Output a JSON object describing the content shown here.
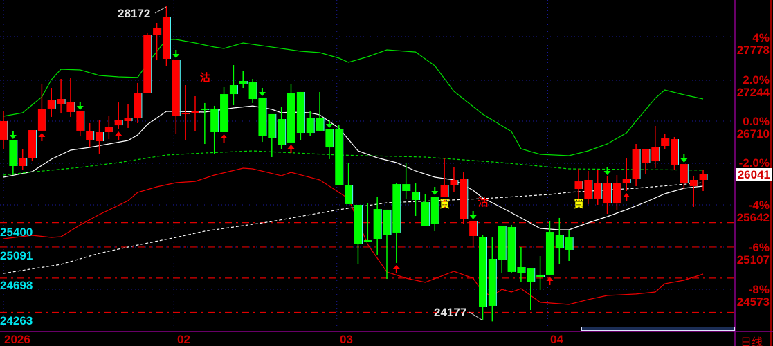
{
  "colors": {
    "up": "#ff0000",
    "down": "#00ff00",
    "ma_short": "#ffffff",
    "ma_long": "#ffffff",
    "band_upper": "#00dd00",
    "band_mid": "#00dd00",
    "band_lower": "#ee0000",
    "grid": "#1a1aa0",
    "axis": "#8a008a",
    "left_labels": "#00e5ee"
  },
  "right_axis": [
    {
      "pct": "4%",
      "price": "27778"
    },
    {
      "pct": "2.0%",
      "price": "27244"
    },
    {
      "pct": "0.0%",
      "price": "26710"
    },
    {
      "pct": "-2.0%",
      "price": ""
    },
    {
      "pct": "-4%",
      "price": "25642"
    },
    {
      "pct": "-6%",
      "price": "25107"
    },
    {
      "pct": "-8%",
      "price": "24573"
    }
  ],
  "last_price": "26041",
  "left_levels": [
    {
      "label": "25400",
      "value": 25400
    },
    {
      "label": "25091",
      "value": 25091
    },
    {
      "label": "24698",
      "value": 24698
    },
    {
      "label": "24263",
      "value": 24263
    }
  ],
  "x_axis": [
    {
      "label": "2026",
      "index": 0
    },
    {
      "label": "02",
      "index": 18
    },
    {
      "label": "03",
      "index": 35
    },
    {
      "label": "04",
      "index": 57
    }
  ],
  "period_label": "日线",
  "annotations": {
    "high": "28172",
    "low": "24177"
  },
  "chart_data": {
    "type": "candlestick",
    "ylim": [
      24177,
      28172
    ],
    "candles": [
      [
        26474,
        26833,
        26360,
        26710
      ],
      [
        26465,
        26465,
        26027,
        26141
      ],
      [
        26141,
        26360,
        26089,
        26246
      ],
      [
        26246,
        26596,
        26202,
        26596
      ],
      [
        26588,
        27174,
        26588,
        26859
      ],
      [
        26868,
        27130,
        26763,
        26973
      ],
      [
        26929,
        27244,
        26806,
        26990
      ],
      [
        26824,
        27253,
        26763,
        26955
      ],
      [
        26588,
        26833,
        26517,
        26833
      ],
      [
        26465,
        26684,
        26386,
        26579
      ],
      [
        26456,
        26719,
        26299,
        26570
      ],
      [
        26570,
        26780,
        26482,
        26640
      ],
      [
        26657,
        26946,
        26605,
        26719
      ],
      [
        26710,
        26929,
        26623,
        26745
      ],
      [
        26745,
        27192,
        26684,
        27060
      ],
      [
        27069,
        27822,
        27069,
        27796
      ],
      [
        27804,
        27953,
        27480,
        27892
      ],
      [
        27498,
        28172,
        27410,
        28032
      ],
      [
        26780,
        27489,
        26552,
        27489
      ],
      [
        26798,
        27165,
        26465,
        26815
      ],
      [
        26815,
        27025,
        26579,
        26841
      ],
      [
        26868,
        26938,
        26421,
        26860
      ],
      [
        26868,
        26903,
        26290,
        26570
      ],
      [
        27051,
        27139,
        26570,
        26570
      ],
      [
        27165,
        27419,
        26911,
        27051
      ],
      [
        27218,
        27349,
        27130,
        27183
      ],
      [
        27209,
        27244,
        26938,
        26990
      ],
      [
        27008,
        27008,
        26447,
        26526
      ],
      [
        26798,
        26798,
        26255,
        26500
      ],
      [
        26736,
        26885,
        26351,
        26412
      ],
      [
        27069,
        27174,
        26439,
        26439
      ],
      [
        27078,
        27078,
        26465,
        26561
      ],
      [
        26754,
        26841,
        26526,
        26561
      ],
      [
        26754,
        27078,
        26588,
        26588
      ],
      [
        26605,
        26605,
        26229,
        26377
      ],
      [
        26614,
        26666,
        25896,
        25896
      ],
      [
        25896,
        26176,
        25660,
        25660
      ],
      [
        25651,
        25651,
        24898,
        25152
      ],
      [
        25204,
        25677,
        25178,
        25197
      ],
      [
        25598,
        25747,
        25021,
        25213
      ],
      [
        25590,
        25590,
        24714,
        25274
      ],
      [
        25913,
        25931,
        24916,
        25301
      ],
      [
        25913,
        26185,
        25721,
        25826
      ],
      [
        25817,
        25922,
        25511,
        25712
      ],
      [
        25686,
        25782,
        25380,
        25380
      ],
      [
        25756,
        25756,
        25318,
        25406
      ],
      [
        25747,
        26246,
        25747,
        25896
      ],
      [
        25896,
        26124,
        25817,
        25966
      ],
      [
        25467,
        26062,
        25414,
        25975
      ],
      [
        25257,
        25449,
        25117,
        25449
      ],
      [
        25248,
        25274,
        24198,
        24364
      ],
      [
        24968,
        25239,
        24177,
        24373
      ],
      [
        25380,
        25380,
        24784,
        24959
      ],
      [
        25371,
        25397,
        24784,
        24802
      ],
      [
        24863,
        25117,
        24679,
        24784
      ],
      [
        24845,
        24845,
        24320,
        24679
      ],
      [
        24767,
        25003,
        24574,
        24740
      ],
      [
        25309,
        25441,
        24767,
        24767
      ],
      [
        25274,
        25485,
        24907,
        25099
      ],
      [
        25239,
        25327,
        24942,
        25082
      ],
      [
        25852,
        26106,
        25695,
        25948
      ],
      [
        25721,
        26080,
        25660,
        25966
      ],
      [
        25730,
        26097,
        25651,
        25922
      ],
      [
        25668,
        26010,
        25537,
        25922
      ],
      [
        25668,
        26027,
        25590,
        25922
      ],
      [
        25922,
        26237,
        25826,
        25983
      ],
      [
        25975,
        26421,
        25887,
        26351
      ],
      [
        26185,
        26360,
        26045,
        26360
      ],
      [
        26202,
        26649,
        26115,
        26386
      ],
      [
        26395,
        26544,
        26351,
        26491
      ],
      [
        26159,
        26509,
        26089,
        26482
      ],
      [
        25922,
        26167,
        25852,
        26167
      ],
      [
        25887,
        26019,
        25625,
        25966
      ],
      [
        25966,
        26097,
        25826,
        26041
      ]
    ],
    "lines": {
      "band_upper": [
        [
          0,
          26771
        ],
        [
          2,
          26815
        ],
        [
          4,
          27016
        ],
        [
          5,
          27235
        ],
        [
          6,
          27367
        ],
        [
          8,
          27358
        ],
        [
          10,
          27288
        ],
        [
          12,
          27270
        ],
        [
          14,
          27262
        ],
        [
          15,
          27437
        ],
        [
          17,
          27743
        ],
        [
          18,
          27743
        ],
        [
          20,
          27699
        ],
        [
          22,
          27647
        ],
        [
          23,
          27629
        ],
        [
          25,
          27699
        ],
        [
          27,
          27664
        ],
        [
          29,
          27629
        ],
        [
          31,
          27594
        ],
        [
          33,
          27577
        ],
        [
          35,
          27507
        ],
        [
          36,
          27454
        ],
        [
          38,
          27524
        ],
        [
          40,
          27612
        ],
        [
          43,
          27585
        ],
        [
          45,
          27410
        ],
        [
          47,
          27087
        ],
        [
          50,
          26798
        ],
        [
          53,
          26579
        ],
        [
          54,
          26360
        ],
        [
          56,
          26290
        ],
        [
          59,
          26272
        ],
        [
          61,
          26334
        ],
        [
          63,
          26421
        ],
        [
          65,
          26561
        ],
        [
          66,
          26710
        ],
        [
          68,
          26999
        ],
        [
          69,
          27104
        ],
        [
          71,
          27043
        ],
        [
          73,
          26990
        ]
      ],
      "ma_short": [
        [
          0,
          26001
        ],
        [
          3,
          26071
        ],
        [
          5,
          26229
        ],
        [
          7,
          26342
        ],
        [
          9,
          26377
        ],
        [
          11,
          26421
        ],
        [
          13,
          26465
        ],
        [
          14,
          26535
        ],
        [
          15,
          26666
        ],
        [
          17,
          26833
        ],
        [
          18,
          26833
        ],
        [
          21,
          26824
        ],
        [
          22,
          26841
        ],
        [
          24,
          26876
        ],
        [
          26,
          26902
        ],
        [
          28,
          26859
        ],
        [
          29,
          26815
        ],
        [
          30,
          26824
        ],
        [
          32,
          26815
        ],
        [
          33,
          26789
        ],
        [
          35,
          26622
        ],
        [
          37,
          26334
        ],
        [
          39,
          26246
        ],
        [
          41,
          26185
        ],
        [
          43,
          26080
        ],
        [
          45,
          26001
        ],
        [
          47,
          25966
        ],
        [
          49,
          25835
        ],
        [
          50,
          25738
        ],
        [
          52,
          25616
        ],
        [
          54,
          25485
        ],
        [
          56,
          25353
        ],
        [
          58,
          25336
        ],
        [
          59,
          25336
        ],
        [
          61,
          25423
        ],
        [
          63,
          25502
        ],
        [
          65,
          25590
        ],
        [
          67,
          25686
        ],
        [
          69,
          25791
        ],
        [
          71,
          25861
        ],
        [
          73,
          25887
        ]
      ],
      "ma_long": [
        [
          0,
          24784
        ],
        [
          6,
          24898
        ],
        [
          10,
          25038
        ],
        [
          14,
          25143
        ],
        [
          18,
          25239
        ],
        [
          21,
          25318
        ],
        [
          28,
          25441
        ],
        [
          35,
          25590
        ],
        [
          40,
          25677
        ],
        [
          50,
          25730
        ],
        [
          57,
          25782
        ],
        [
          59,
          25809
        ],
        [
          66,
          25861
        ],
        [
          73,
          25931
        ]
      ],
      "band_mid": [
        [
          0,
          26027
        ],
        [
          2,
          26054
        ],
        [
          8,
          26124
        ],
        [
          12,
          26185
        ],
        [
          17,
          26281
        ],
        [
          21,
          26307
        ],
        [
          26,
          26334
        ],
        [
          35,
          26281
        ],
        [
          44,
          26255
        ],
        [
          52,
          26185
        ],
        [
          59,
          26106
        ],
        [
          73,
          26089
        ]
      ],
      "band_lower": [
        [
          0,
          25222
        ],
        [
          3,
          25266
        ],
        [
          5,
          25239
        ],
        [
          6,
          25248
        ],
        [
          8,
          25397
        ],
        [
          10,
          25528
        ],
        [
          13,
          25703
        ],
        [
          14,
          25808
        ],
        [
          16,
          25878
        ],
        [
          18,
          25931
        ],
        [
          20,
          25948
        ],
        [
          22,
          26027
        ],
        [
          25,
          26115
        ],
        [
          26,
          26106
        ],
        [
          29,
          26019
        ],
        [
          30,
          26062
        ],
        [
          33,
          25966
        ],
        [
          35,
          25808
        ],
        [
          36,
          25730
        ],
        [
          38,
          25152
        ],
        [
          40,
          24802
        ],
        [
          42,
          24723
        ],
        [
          44,
          24670
        ],
        [
          47,
          24810
        ],
        [
          49,
          24723
        ],
        [
          50,
          24548
        ],
        [
          51,
          24495
        ],
        [
          52,
          24583
        ],
        [
          53,
          24548
        ],
        [
          54,
          24592
        ],
        [
          56,
          24417
        ],
        [
          59,
          24390
        ],
        [
          61,
          24452
        ],
        [
          63,
          24504
        ],
        [
          66,
          24522
        ],
        [
          68,
          24548
        ],
        [
          69,
          24653
        ],
        [
          71,
          24697
        ],
        [
          73,
          24775
        ]
      ]
    },
    "down_arrows": [
      1,
      8,
      18,
      27,
      34,
      45,
      49,
      63,
      71
    ],
    "up_arrows": [
      4,
      12,
      23,
      30,
      41,
      46,
      57,
      65
    ],
    "signals": [
      {
        "text": "沽",
        "index": 21,
        "price": 27217,
        "color": "#ff0000"
      },
      {
        "text": "買",
        "index": 46,
        "price": 25620,
        "color": "#ffff00"
      },
      {
        "text": "沽",
        "index": 50,
        "price": 25640,
        "color": "#ff0000"
      },
      {
        "text": "買",
        "index": 60,
        "price": 25620,
        "color": "#ffff00"
      }
    ]
  }
}
